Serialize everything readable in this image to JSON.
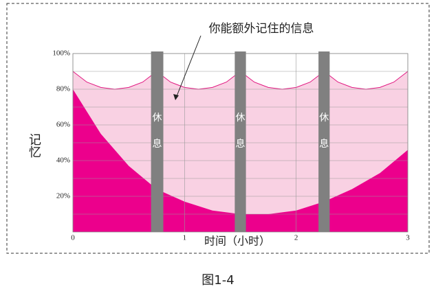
{
  "chart_data": {
    "type": "area",
    "annotation": "你能额外记住的信息",
    "y_label": "记忆",
    "x_label": "时间（小时）",
    "caption": "图1-4",
    "xlim": [
      0,
      3
    ],
    "xticks": [
      0,
      1,
      2,
      3
    ],
    "ylim": [
      0,
      100
    ],
    "yticks": [
      {
        "value": 20,
        "label": "20%"
      },
      {
        "value": 40,
        "label": "40%"
      },
      {
        "value": 60,
        "label": "60%"
      },
      {
        "value": 80,
        "label": "80%"
      },
      {
        "value": 100,
        "label": "100%"
      }
    ],
    "ygrid": [
      10,
      20,
      30,
      40,
      50,
      60,
      70,
      80,
      90,
      100
    ],
    "grid": true,
    "series": [
      {
        "color": "#f9d1e3",
        "line_color": "#e0157f",
        "x": [
          0,
          0.125,
          0.25,
          0.375,
          0.5,
          0.625,
          0.75,
          0.875,
          1,
          1.125,
          1.25,
          1.375,
          1.5,
          1.625,
          1.75,
          1.875,
          2,
          2.125,
          2.25,
          2.375,
          2.5,
          2.625,
          2.75,
          2.875,
          3
        ],
        "values": [
          90,
          84,
          81,
          80,
          81,
          84,
          90,
          84,
          81,
          80,
          81,
          84,
          90,
          84,
          81,
          80,
          81,
          84,
          90,
          84,
          81,
          80,
          81,
          84,
          90
        ]
      },
      {
        "color": "#ec008c",
        "x": [
          0,
          0.25,
          0.5,
          0.75,
          1,
          1.25,
          1.5,
          1.75,
          2,
          2.25,
          2.5,
          2.75,
          3
        ],
        "values": [
          80,
          55,
          37,
          24,
          17,
          12,
          10,
          10,
          12,
          17,
          24,
          33,
          46
        ]
      }
    ],
    "breaks": [
      {
        "start": 0.7,
        "end": 0.81
      },
      {
        "start": 1.45,
        "end": 1.55
      },
      {
        "start": 2.2,
        "end": 2.3
      }
    ],
    "break_color": "#808080",
    "break_label": [
      "休",
      "息"
    ]
  }
}
